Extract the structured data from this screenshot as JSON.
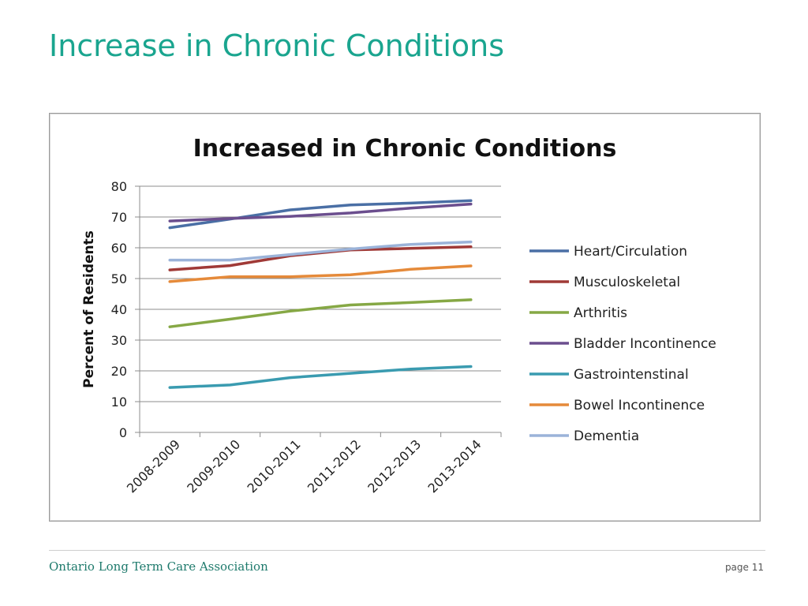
{
  "slide": {
    "title": "Increase in Chronic Conditions",
    "footer_org": "Ontario Long Term Care Association",
    "page_label": "page 11"
  },
  "chart_data": {
    "type": "line",
    "title": "Increased in Chronic Conditions",
    "xlabel": "",
    "ylabel": "Percent of Residents",
    "ylim": [
      0,
      80
    ],
    "yticks": [
      0,
      10,
      20,
      30,
      40,
      50,
      60,
      70,
      80
    ],
    "grid": true,
    "legend_position": "right",
    "categories": [
      "2008-2009",
      "2009-2010",
      "2010-2011",
      "2011-2012",
      "2012-2013",
      "2013-2014"
    ],
    "series": [
      {
        "name": "Heart/Circulation",
        "color": "#4a6fa5",
        "values": [
          66.5,
          69.3,
          72.3,
          73.9,
          74.5,
          75.3
        ]
      },
      {
        "name": "Musculoskeletal",
        "color": "#a03a37",
        "values": [
          52.8,
          54.2,
          57.4,
          59.3,
          59.8,
          60.3
        ]
      },
      {
        "name": "Arthritis",
        "color": "#86a845",
        "values": [
          34.3,
          36.8,
          39.4,
          41.4,
          42.2,
          43.1
        ]
      },
      {
        "name": "Bladder Incontinence",
        "color": "#6b4e8e",
        "values": [
          68.7,
          69.5,
          70.2,
          71.3,
          72.9,
          74.2
        ]
      },
      {
        "name": "Gastrointenstinal",
        "color": "#3a9bb0",
        "values": [
          14.6,
          15.4,
          17.8,
          19.2,
          20.6,
          21.4
        ]
      },
      {
        "name": "Bowel Incontinence",
        "color": "#e58a3a",
        "values": [
          49.0,
          50.6,
          50.6,
          51.2,
          53.0,
          54.1
        ]
      },
      {
        "name": "Dementia",
        "color": "#9bb3d9",
        "values": [
          56.0,
          56.0,
          57.8,
          59.6,
          61.1,
          61.9
        ]
      }
    ]
  }
}
